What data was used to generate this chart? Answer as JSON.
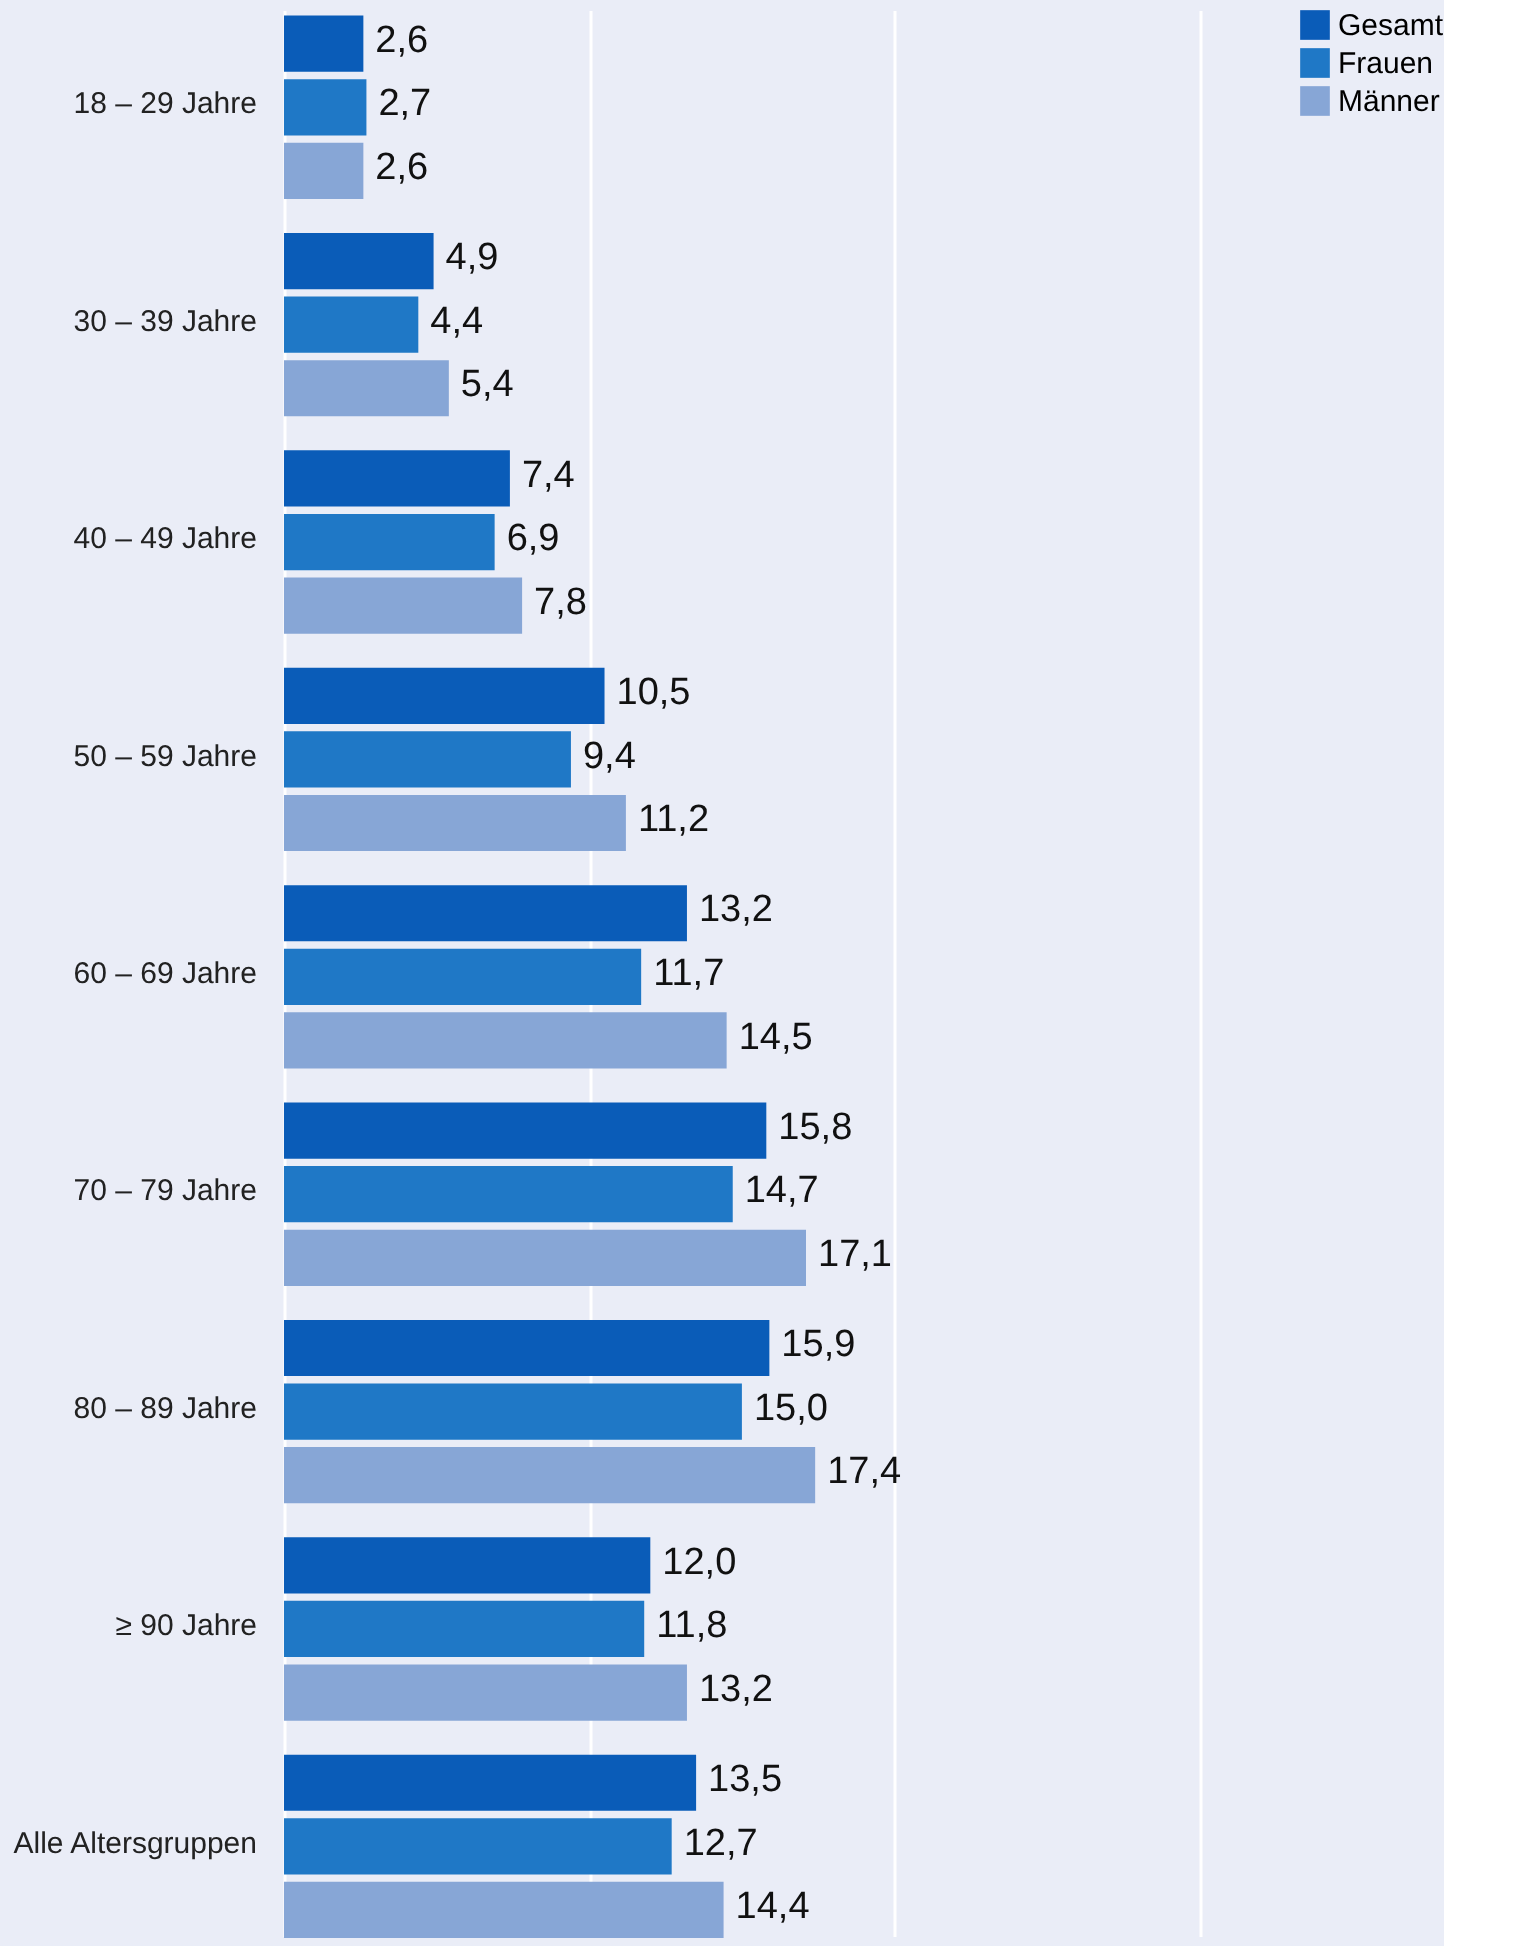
{
  "chart_data": {
    "type": "bar",
    "orientation": "horizontal",
    "categories": [
      "18 – 29 Jahre",
      "30 – 39 Jahre",
      "40 – 49 Jahre",
      "50 – 59 Jahre",
      "60 – 69 Jahre",
      "70 – 79 Jahre",
      "80 – 89 Jahre",
      "≥ 90 Jahre",
      "Alle Altersgruppen"
    ],
    "series": [
      {
        "name": "Gesamt",
        "color": "#0a5cb8",
        "values": [
          2.6,
          4.9,
          7.4,
          10.5,
          13.2,
          15.8,
          15.9,
          12.0,
          13.5
        ],
        "value_labels": [
          "2,6",
          "4,9",
          "7,4",
          "10,5",
          "13,2",
          "15,8",
          "15,9",
          "12,0",
          "13,5"
        ]
      },
      {
        "name": "Frauen",
        "color": "#1f78c6",
        "values": [
          2.7,
          4.4,
          6.9,
          9.4,
          11.7,
          14.7,
          15.0,
          11.8,
          12.7
        ],
        "value_labels": [
          "2,7",
          "4,4",
          "6,9",
          "9,4",
          "11,7",
          "14,7",
          "15,0",
          "11,8",
          "12,7"
        ]
      },
      {
        "name": "Männer",
        "color": "#87a6d6",
        "values": [
          2.6,
          5.4,
          7.8,
          11.2,
          14.5,
          17.1,
          17.4,
          13.2,
          14.4
        ],
        "value_labels": [
          "2,6",
          "5,4",
          "7,8",
          "11,2",
          "14,5",
          "17,1",
          "17,4",
          "13,2",
          "14,4"
        ]
      }
    ],
    "xlim": [
      0,
      38
    ],
    "xticks": [
      {
        "value": 0,
        "label": null
      },
      {
        "value": 10,
        "label": null
      },
      {
        "value": 20,
        "label": null
      },
      {
        "value": 30,
        "label": null
      }
    ],
    "tick_labels": "y",
    "grid": "x",
    "legend": "top right"
  }
}
